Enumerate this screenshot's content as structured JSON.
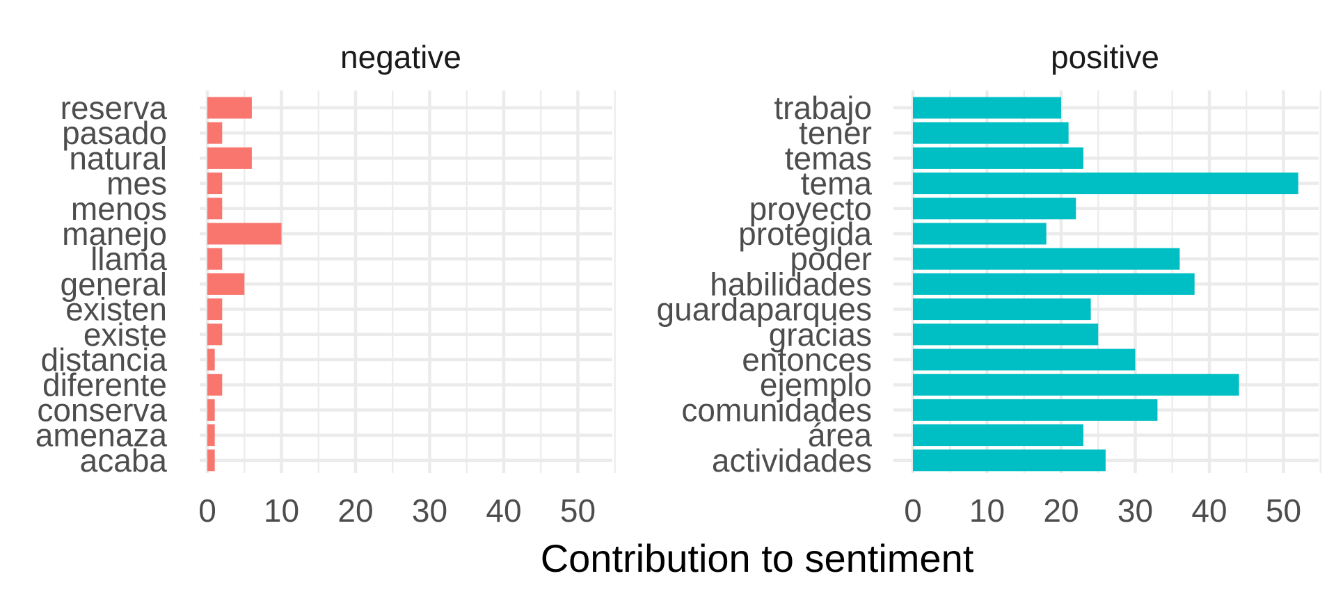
{
  "chart_data": {
    "type": "bar",
    "orientation": "horizontal",
    "xlabel": "Contribution to sentiment",
    "ylabel": "",
    "xlim": [
      0,
      55
    ],
    "xticks": [
      0,
      10,
      20,
      30,
      40,
      50
    ],
    "grid": true,
    "facets": [
      {
        "title": "negative",
        "color": "#F8766D",
        "categories": [
          "reserva",
          "pasado",
          "natural",
          "mes",
          "menos",
          "manejo",
          "llama",
          "general",
          "existen",
          "existe",
          "distancia",
          "diferente",
          "conserva",
          "amenaza",
          "acaba"
        ],
        "values": [
          6,
          2,
          6,
          2,
          2,
          10,
          2,
          5,
          2,
          2,
          1,
          2,
          1,
          1,
          1
        ]
      },
      {
        "title": "positive",
        "color": "#00BFC4",
        "categories": [
          "trabajo",
          "tener",
          "temas",
          "tema",
          "proyecto",
          "protegida",
          "poder",
          "habilidades",
          "guardaparques",
          "gracias",
          "entonces",
          "ejemplo",
          "comunidades",
          "área",
          "actividades"
        ],
        "values": [
          20,
          21,
          23,
          52,
          22,
          18,
          36,
          38,
          24,
          25,
          30,
          44,
          33,
          23,
          26
        ]
      }
    ]
  }
}
